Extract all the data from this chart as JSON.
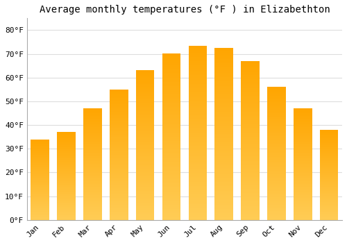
{
  "title": "Average monthly temperatures (°F ) in Elizabethton",
  "months": [
    "Jan",
    "Feb",
    "Mar",
    "Apr",
    "May",
    "Jun",
    "Jul",
    "Aug",
    "Sep",
    "Oct",
    "Nov",
    "Dec"
  ],
  "values": [
    34,
    37,
    47,
    55,
    63,
    70,
    73.5,
    72.5,
    67,
    56,
    47,
    38
  ],
  "bar_color_top": "#FFA500",
  "bar_color_bottom": "#FFCC55",
  "background_color": "#FFFFFF",
  "grid_color": "#dddddd",
  "ylim": [
    0,
    85
  ],
  "yticks": [
    0,
    10,
    20,
    30,
    40,
    50,
    60,
    70,
    80
  ],
  "ytick_labels": [
    "0°F",
    "10°F",
    "20°F",
    "30°F",
    "40°F",
    "50°F",
    "60°F",
    "70°F",
    "80°F"
  ],
  "title_fontsize": 10,
  "tick_fontsize": 8,
  "font_family": "monospace"
}
